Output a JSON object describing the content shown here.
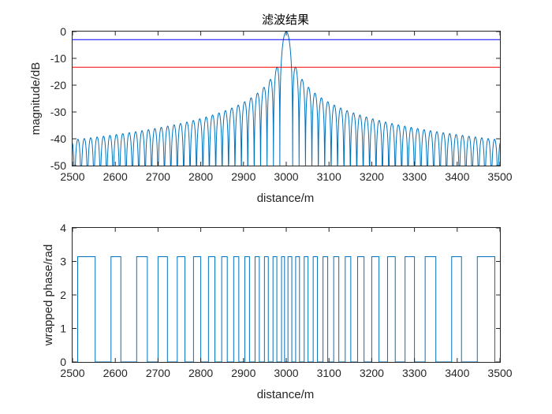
{
  "chart_data": [
    {
      "type": "line",
      "title": "滤波结果",
      "xlabel": "distance/m",
      "ylabel": "magnitude/dB",
      "xlim": [
        2500,
        3500
      ],
      "ylim": [
        -50,
        0
      ],
      "x_ticks": [
        "2500",
        "2600",
        "2700",
        "2800",
        "2900",
        "3000",
        "3100",
        "3200",
        "3300",
        "3400",
        "3500"
      ],
      "y_ticks": [
        "0",
        "-10",
        "-20",
        "-30",
        "-40",
        "-50"
      ],
      "grid": false,
      "main_lobe": {
        "x": 3000,
        "y": 0
      },
      "first_sidelobe_level": -13.3,
      "sidelobe_peaks_approx": [
        {
          "x": 2515,
          "y": -40
        },
        {
          "x": 2560,
          "y": -39
        },
        {
          "x": 2610,
          "y": -38.5
        },
        {
          "x": 2700,
          "y": -37
        },
        {
          "x": 2800,
          "y": -34
        },
        {
          "x": 2900,
          "y": -28
        },
        {
          "x": 2950,
          "y": -22
        },
        {
          "x": 2970,
          "y": -18
        },
        {
          "x": 2985,
          "y": -13.3
        },
        {
          "x": 3015,
          "y": -13.3
        },
        {
          "x": 3030,
          "y": -18
        },
        {
          "x": 3050,
          "y": -22
        },
        {
          "x": 3100,
          "y": -28
        },
        {
          "x": 3200,
          "y": -34
        },
        {
          "x": 3300,
          "y": -37
        },
        {
          "x": 3400,
          "y": -38.5
        },
        {
          "x": 3450,
          "y": -39
        },
        {
          "x": 3485,
          "y": -40
        }
      ],
      "reference_lines": [
        {
          "y": -3,
          "color": "#0000FF"
        },
        {
          "y": -13.3,
          "color": "#FF0000"
        }
      ],
      "series_color": "#0072BD"
    },
    {
      "type": "line",
      "title": "",
      "xlabel": "distance/m",
      "ylabel": "wrapped phase/rad",
      "xlim": [
        2500,
        3500
      ],
      "ylim": [
        0,
        4
      ],
      "x_ticks": [
        "2500",
        "2600",
        "2700",
        "2800",
        "2900",
        "3000",
        "3100",
        "3200",
        "3300",
        "3400",
        "3500"
      ],
      "y_ticks": [
        "0",
        "1",
        "2",
        "3",
        "4"
      ],
      "grid": false,
      "levels": [
        0,
        3.1416
      ],
      "high_intervals": [
        [
          2512,
          2553
        ],
        [
          2590,
          2613
        ],
        [
          2650,
          2675
        ],
        [
          2700,
          2722
        ],
        [
          2745,
          2763
        ],
        [
          2783,
          2800
        ],
        [
          2818,
          2833
        ],
        [
          2849,
          2862
        ],
        [
          2877,
          2889
        ],
        [
          2903,
          2914
        ],
        [
          2927,
          2937
        ],
        [
          2949,
          2958
        ],
        [
          2969,
          2978
        ],
        [
          2989,
          2996
        ],
        [
          3004,
          3013
        ],
        [
          3022,
          3031
        ],
        [
          3042,
          3051
        ],
        [
          3063,
          3073
        ],
        [
          3086,
          3097
        ],
        [
          3111,
          3123
        ],
        [
          3138,
          3151
        ],
        [
          3167,
          3182
        ],
        [
          3200,
          3217
        ],
        [
          3237,
          3255
        ],
        [
          3278,
          3300
        ],
        [
          3325,
          3350
        ],
        [
          3387,
          3410
        ],
        [
          3447,
          3488
        ]
      ],
      "series_color": "#0072BD"
    }
  ]
}
